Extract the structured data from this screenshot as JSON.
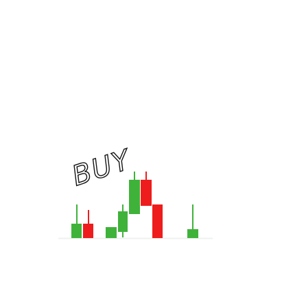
{
  "label": "BUY"
}
